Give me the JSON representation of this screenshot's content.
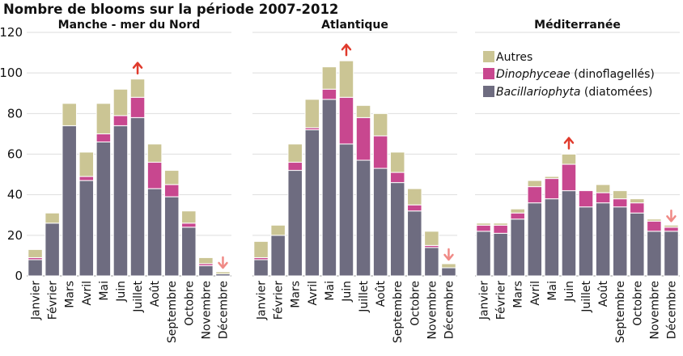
{
  "chart_data": {
    "type": "bar",
    "stacked": true,
    "title": "Nombre de blooms sur la période 2007-2012",
    "ylim": [
      0,
      120
    ],
    "yticks": [
      0,
      20,
      40,
      60,
      80,
      100,
      120
    ],
    "categories": [
      "Janvier",
      "Février",
      "Mars",
      "Avril",
      "Mai",
      "Juin",
      "Juillet",
      "Août",
      "Septembre",
      "Octobre",
      "Novembre",
      "Décembre"
    ],
    "series_info": [
      {
        "key": "bac",
        "label_italic": "Bacillariophyta",
        "label_rest": " (diatomées)",
        "color": "#6e6c80"
      },
      {
        "key": "dino",
        "label_italic": "Dinophyceae",
        "label_rest": " (dinoflagellés)",
        "color": "#c8478f"
      },
      {
        "key": "autres",
        "label_italic": "",
        "label_rest": "Autres",
        "color": "#cbc594"
      }
    ],
    "arrow_up_color": "#e03a2c",
    "arrow_down_color": "#f08a86",
    "panels": [
      {
        "title": "Manche - mer du Nord",
        "bac": [
          8,
          26,
          74,
          47,
          66,
          74,
          78,
          43,
          39,
          24,
          5,
          1
        ],
        "dino": [
          1,
          0,
          0,
          2,
          4,
          5,
          10,
          13,
          6,
          2,
          1,
          0
        ],
        "autres": [
          4,
          5,
          11,
          12,
          15,
          13,
          9,
          9,
          7,
          6,
          3,
          1
        ],
        "arrows": [
          {
            "month": "Juillet",
            "dir": "up"
          },
          {
            "month": "Décembre",
            "dir": "down"
          }
        ]
      },
      {
        "title": "Atlantique",
        "bac": [
          8,
          20,
          52,
          72,
          87,
          65,
          57,
          53,
          46,
          32,
          14,
          4
        ],
        "dino": [
          1,
          0,
          4,
          1,
          5,
          23,
          21,
          16,
          5,
          3,
          1,
          0
        ],
        "autres": [
          8,
          5,
          9,
          14,
          11,
          18,
          6,
          11,
          10,
          8,
          7,
          2
        ],
        "arrows": [
          {
            "month": "Juin",
            "dir": "up"
          },
          {
            "month": "Décembre",
            "dir": "down"
          }
        ]
      },
      {
        "title": "Méditerranée",
        "bac": [
          22,
          21,
          28,
          36,
          38,
          42,
          34,
          36,
          34,
          31,
          22,
          22
        ],
        "dino": [
          3,
          4,
          3,
          8,
          10,
          13,
          8,
          5,
          4,
          5,
          5,
          2
        ],
        "autres": [
          1,
          1,
          2,
          3,
          1,
          5,
          0,
          4,
          4,
          2,
          1,
          1
        ],
        "arrows": [
          {
            "month": "Juin",
            "dir": "up"
          },
          {
            "month": "Décembre",
            "dir": "down"
          }
        ]
      }
    ]
  }
}
